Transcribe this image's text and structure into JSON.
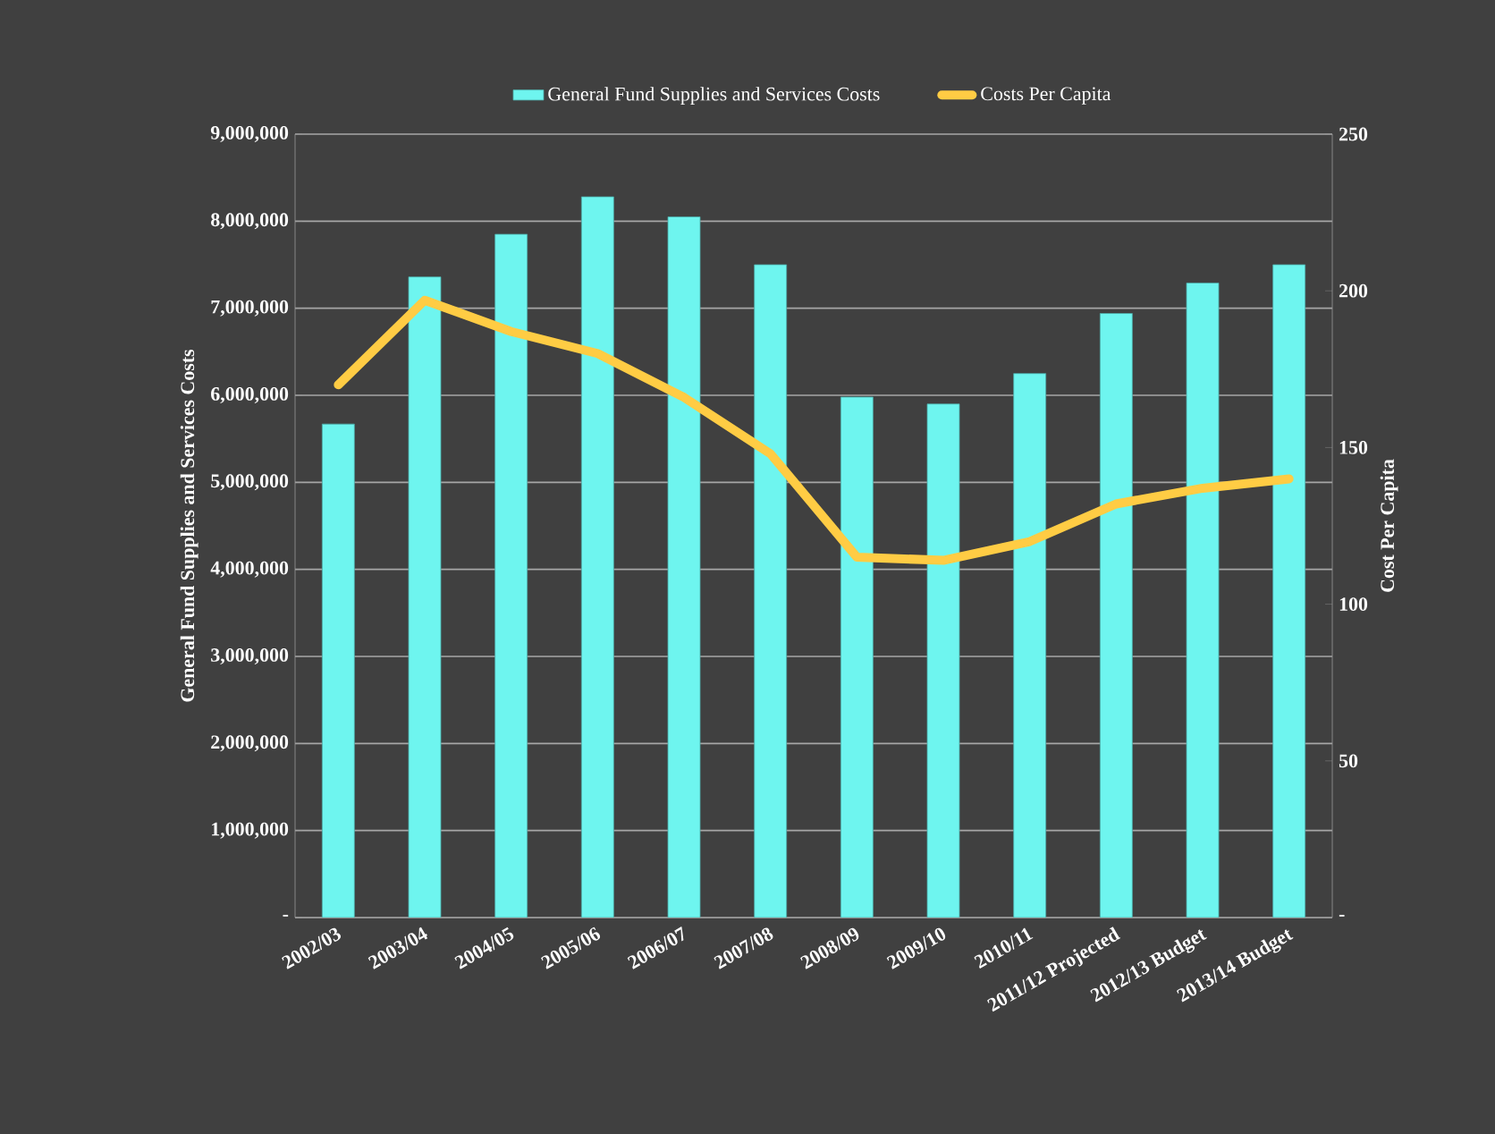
{
  "chart_data": {
    "type": "bar",
    "ylabel": "General Fund Supplies and Services Costs",
    "y2label": "Cost Per Capita",
    "categories": [
      "2002/03",
      "2003/04",
      "2004/05",
      "2005/06",
      "2006/07",
      "2007/08",
      "2008/09",
      "2009/10",
      "2010/11",
      "2011/12 Projected",
      "2012/13 Budget",
      "2013/14 Budget"
    ],
    "series": [
      {
        "name": "General Fund Supplies and Services Costs",
        "color": "#6ef5ef",
        "values": [
          5670000,
          7360000,
          7850000,
          8280000,
          8050000,
          7500000,
          5980000,
          5900000,
          6250000,
          6940000,
          7290000,
          7500000
        ]
      },
      {
        "name": "Costs Per Capita",
        "type": "line",
        "axis": "y2",
        "color": "#ffcc44",
        "values": [
          170,
          197,
          187,
          180,
          166,
          148,
          115,
          114,
          120,
          132,
          137,
          140
        ]
      }
    ],
    "ylim": [
      0,
      9000000
    ],
    "yticks": [
      {
        "value": 0,
        "label": "-"
      },
      {
        "value": 1000000,
        "label": "1,000,000"
      },
      {
        "value": 2000000,
        "label": "2,000,000"
      },
      {
        "value": 3000000,
        "label": "3,000,000"
      },
      {
        "value": 4000000,
        "label": "4,000,000"
      },
      {
        "value": 5000000,
        "label": "5,000,000"
      },
      {
        "value": 6000000,
        "label": "6,000,000"
      },
      {
        "value": 7000000,
        "label": "7,000,000"
      },
      {
        "value": 8000000,
        "label": "8,000,000"
      },
      {
        "value": 9000000,
        "label": "9,000,000"
      }
    ],
    "y2lim": [
      0,
      250
    ],
    "y2ticks": [
      {
        "value": 0,
        "label": "-"
      },
      50,
      100,
      150,
      200,
      250
    ],
    "grid": "y",
    "legend": "top"
  }
}
